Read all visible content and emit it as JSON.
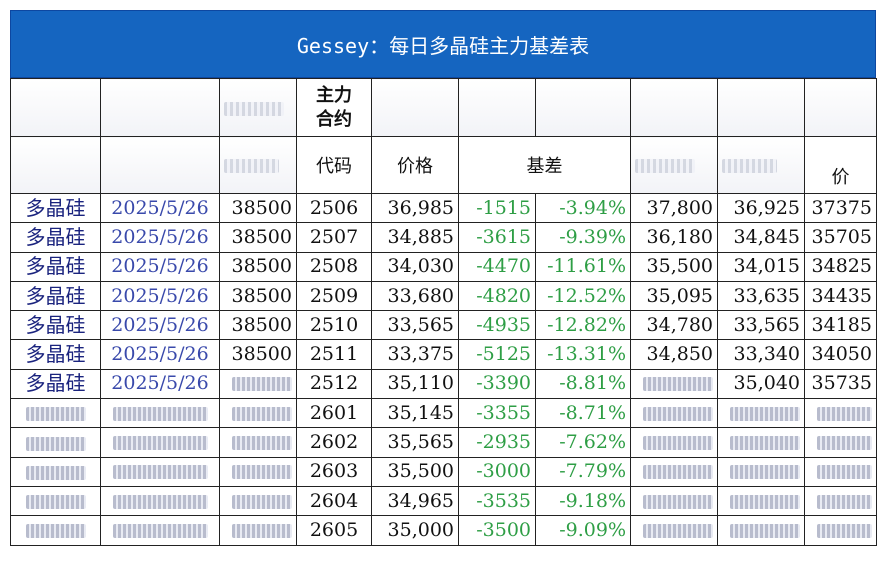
{
  "title": "Gessey：每日多晶硅主力基差表",
  "header": {
    "main_contract": "主力\n合约",
    "code": "代码",
    "price": "价格",
    "basis": "基差",
    "last_col_fragment": "价"
  },
  "rows": [
    {
      "product": "多晶硅",
      "date": "2025/5/26",
      "spot": "38500",
      "code": "2506",
      "price": "36,985",
      "basis": "-1515",
      "basis_pct": "-3.94%",
      "high": "37,800",
      "low": "36,925",
      "last": "37375"
    },
    {
      "product": "多晶硅",
      "date": "2025/5/26",
      "spot": "38500",
      "code": "2507",
      "price": "34,885",
      "basis": "-3615",
      "basis_pct": "-9.39%",
      "high": "36,180",
      "low": "34,845",
      "last": "35705"
    },
    {
      "product": "多晶硅",
      "date": "2025/5/26",
      "spot": "38500",
      "code": "2508",
      "price": "34,030",
      "basis": "-4470",
      "basis_pct": "-11.61%",
      "high": "35,500",
      "low": "34,015",
      "last": "34825"
    },
    {
      "product": "多晶硅",
      "date": "2025/5/26",
      "spot": "38500",
      "code": "2509",
      "price": "33,680",
      "basis": "-4820",
      "basis_pct": "-12.52%",
      "high": "35,095",
      "low": "33,635",
      "last": "34435"
    },
    {
      "product": "多晶硅",
      "date": "2025/5/26",
      "spot": "38500",
      "code": "2510",
      "price": "33,565",
      "basis": "-4935",
      "basis_pct": "-12.82%",
      "high": "34,780",
      "low": "33,565",
      "last": "34185"
    },
    {
      "product": "多晶硅",
      "date": "2025/5/26",
      "spot": "38500",
      "code": "2511",
      "price": "33,375",
      "basis": "-5125",
      "basis_pct": "-13.31%",
      "high": "34,850",
      "low": "33,340",
      "last": "34050"
    },
    {
      "product": "多晶硅",
      "date": "2025/5/26",
      "spot": "",
      "code": "2512",
      "price": "35,110",
      "basis": "-3390",
      "basis_pct": "-8.81%",
      "high": "",
      "low": "35,040",
      "last": "35735"
    },
    {
      "product": "",
      "date": "",
      "spot": "",
      "code": "2601",
      "price": "35,145",
      "basis": "-3355",
      "basis_pct": "-8.71%",
      "high": "",
      "low": "",
      "last": ""
    },
    {
      "product": "",
      "date": "",
      "spot": "",
      "code": "2602",
      "price": "35,565",
      "basis": "-2935",
      "basis_pct": "-7.62%",
      "high": "",
      "low": "",
      "last": ""
    },
    {
      "product": "",
      "date": "",
      "spot": "",
      "code": "2603",
      "price": "35,500",
      "basis": "-3000",
      "basis_pct": "-7.79%",
      "high": "",
      "low": "",
      "last": ""
    },
    {
      "product": "",
      "date": "",
      "spot": "",
      "code": "2604",
      "price": "34,965",
      "basis": "-3535",
      "basis_pct": "-9.18%",
      "high": "",
      "low": "",
      "last": ""
    },
    {
      "product": "",
      "date": "",
      "spot": "",
      "code": "2605",
      "price": "35,000",
      "basis": "-3500",
      "basis_pct": "-9.09%",
      "high": "",
      "low": "",
      "last": ""
    }
  ],
  "colors": {
    "title_bg": "#1565c0",
    "basis_green": "#2e9e45",
    "product_text": "#1a237e",
    "date_text": "#3949ab"
  }
}
